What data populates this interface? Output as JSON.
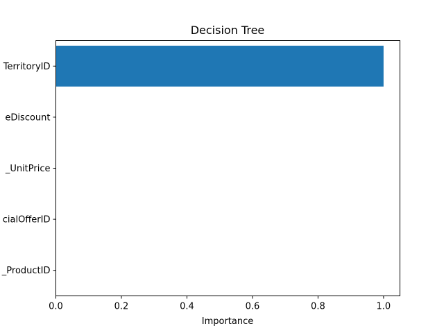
{
  "chart_data": {
    "type": "bar",
    "orientation": "horizontal",
    "title": "Decision Tree",
    "xlabel": "Importance",
    "ylabel": "",
    "categories": [
      "TerritoryID",
      "eDiscount",
      "_UnitPrice",
      "cialOfferID",
      "_ProductID"
    ],
    "values": [
      1.0,
      0.0,
      0.0,
      0.0,
      0.0
    ],
    "xlim": [
      0,
      1.05
    ],
    "xticks": [
      0.0,
      0.2,
      0.4,
      0.6,
      0.8,
      1.0
    ],
    "xtick_labels": [
      "0.0",
      "0.2",
      "0.4",
      "0.6",
      "0.8",
      "1.0"
    ],
    "bar_color": "#1f77b4",
    "grid": false,
    "legend": "none"
  }
}
